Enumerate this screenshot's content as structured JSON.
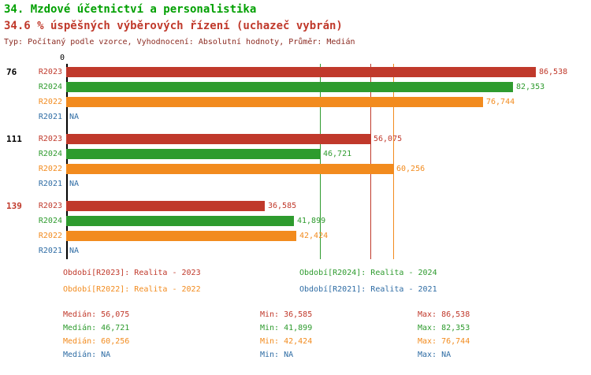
{
  "header": {
    "title": "34. Mzdové účetnictví a personalistika",
    "subtitle": "34.6 % úspěšných výběrových řízení (uchazeč vybrán)",
    "meta": "Typ: Počítaný podle vzorce, Vyhodnocení: Absolutní hodnoty, Průměr: Medián"
  },
  "colors": {
    "green": "#2e9b2e",
    "red": "#c0392b",
    "orange": "#f28b1e",
    "blue": "#2e6ca4",
    "title_green": "#00a000",
    "meta_red": "#8b2a21",
    "black": "#000000"
  },
  "chart_data": {
    "type": "bar",
    "orientation": "horizontal",
    "x_origin_label": "0",
    "xmax": 86538,
    "series_colors": {
      "R2023": "red",
      "R2024": "green",
      "R2022": "orange",
      "R2021": "blue"
    },
    "groups": [
      {
        "label": "76",
        "label_color": "black",
        "bars": [
          {
            "series": "R2023",
            "value": 86538,
            "display": "86,538"
          },
          {
            "series": "R2024",
            "value": 82353,
            "display": "82,353"
          },
          {
            "series": "R2022",
            "value": 76744,
            "display": "76,744"
          },
          {
            "series": "R2021",
            "value": null,
            "display": "NA"
          }
        ]
      },
      {
        "label": "111",
        "label_color": "black",
        "bars": [
          {
            "series": "R2023",
            "value": 56075,
            "display": "56,075"
          },
          {
            "series": "R2024",
            "value": 46721,
            "display": "46,721"
          },
          {
            "series": "R2022",
            "value": 60256,
            "display": "60,256"
          },
          {
            "series": "R2021",
            "value": null,
            "display": "NA"
          }
        ]
      },
      {
        "label": "139",
        "label_color": "red",
        "bars": [
          {
            "series": "R2023",
            "value": 36585,
            "display": "36,585"
          },
          {
            "series": "R2024",
            "value": 41899,
            "display": "41,899"
          },
          {
            "series": "R2022",
            "value": 42424,
            "display": "42,424"
          },
          {
            "series": "R2021",
            "value": null,
            "display": "NA"
          }
        ]
      }
    ],
    "reference_lines": [
      {
        "value": 46721,
        "color": "green"
      },
      {
        "value": 56075,
        "color": "red"
      },
      {
        "value": 60256,
        "color": "orange"
      }
    ]
  },
  "legend": [
    {
      "label": "Období[R2023]: Realita - 2023",
      "color": "red"
    },
    {
      "label": "Období[R2024]: Realita - 2024",
      "color": "green"
    },
    {
      "label": "Období[R2022]: Realita - 2022",
      "color": "orange"
    },
    {
      "label": "Období[R2021]: Realita - 2021",
      "color": "blue"
    }
  ],
  "stats": [
    {
      "median": "Medián: 56,075",
      "min": "Min: 36,585",
      "max": "Max: 86,538",
      "color": "red"
    },
    {
      "median": "Medián: 46,721",
      "min": "Min: 41,899",
      "max": "Max: 82,353",
      "color": "green"
    },
    {
      "median": "Medián: 60,256",
      "min": "Min: 42,424",
      "max": "Max: 76,744",
      "color": "orange"
    },
    {
      "median": "Medián: NA",
      "min": "Min: NA",
      "max": "Max: NA",
      "color": "blue"
    }
  ]
}
